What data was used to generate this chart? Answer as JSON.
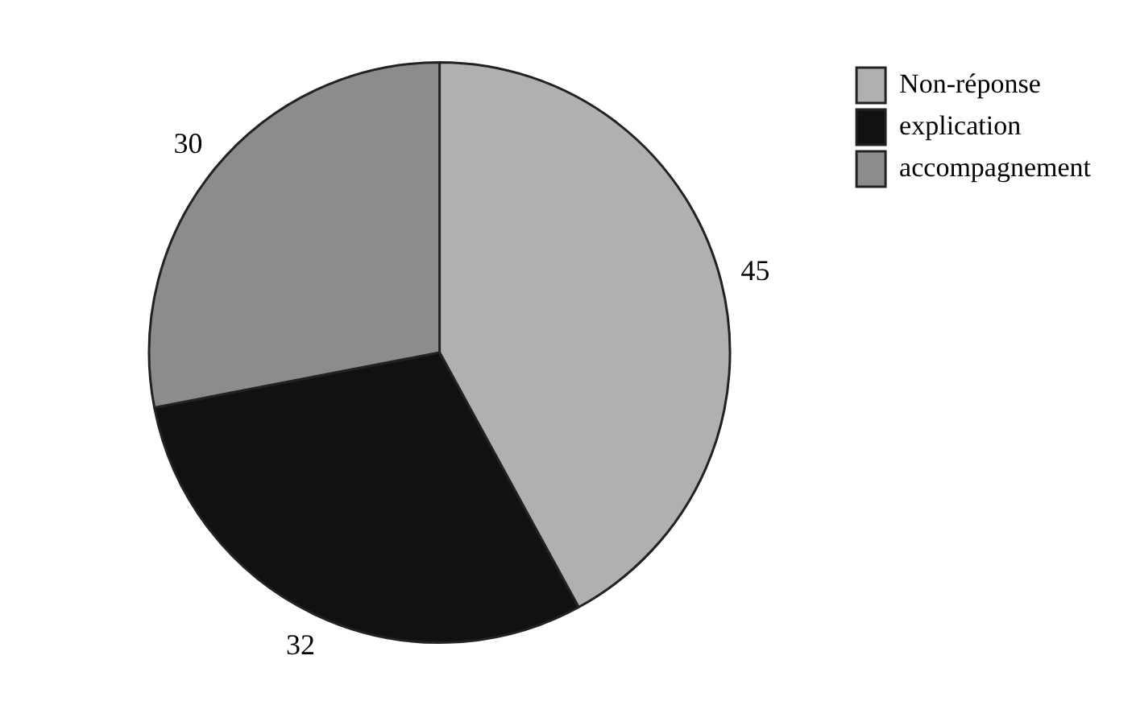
{
  "chart_data": {
    "type": "pie",
    "categories": [
      "Non-réponse",
      "explication",
      "accompagnement"
    ],
    "values": [
      45,
      32,
      30
    ],
    "colors": [
      "#b0b0b0",
      "#111111",
      "#8c8c8c"
    ],
    "data_labels": true,
    "legend": "top right"
  }
}
